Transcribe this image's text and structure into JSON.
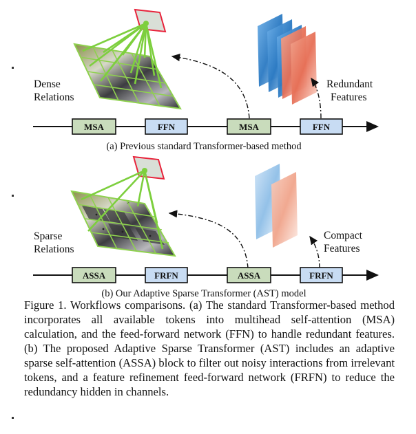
{
  "panel_a": {
    "left_label_line1": "Dense",
    "left_label_line2": "Relations",
    "right_label_line1": "Redundant",
    "right_label_line2": "Features",
    "blocks": [
      "MSA",
      "FFN",
      "MSA",
      "FFN"
    ],
    "subcaption": "(a) Previous standard Transformer-based method"
  },
  "panel_b": {
    "left_label_line1": "Sparse",
    "left_label_line2": "Relations",
    "right_label_line1": "Compact",
    "right_label_line2": "Features",
    "blocks": [
      "ASSA",
      "FRFN",
      "ASSA",
      "FRFN"
    ],
    "subcaption": "(b) Our Adaptive Sparse Transformer (AST) model"
  },
  "colors": {
    "green_block": "#c9dcbc",
    "blue_block": "#c8dcf3",
    "grid_green": "#8fd14f",
    "rel_line_green": "#7dcf3e",
    "token_red": "#e8233b",
    "blue_feature": "#2b7fc4",
    "red_feature": "#e8806a"
  },
  "caption": "Figure 1. Workflows comparisons. (a) The standard Transformer-based method incorporates all available tokens into multihead self-attention (MSA) calculation, and the feed-forward network (FFN) to handle redundant features. (b) The proposed Adaptive Sparse Transformer (AST) includes an adaptive sparse self-attention (ASSA) block to filter out noisy interactions from irrelevant tokens, and a feature refinement feed-forward network (FRFN) to reduce the redundancy hidden in channels."
}
